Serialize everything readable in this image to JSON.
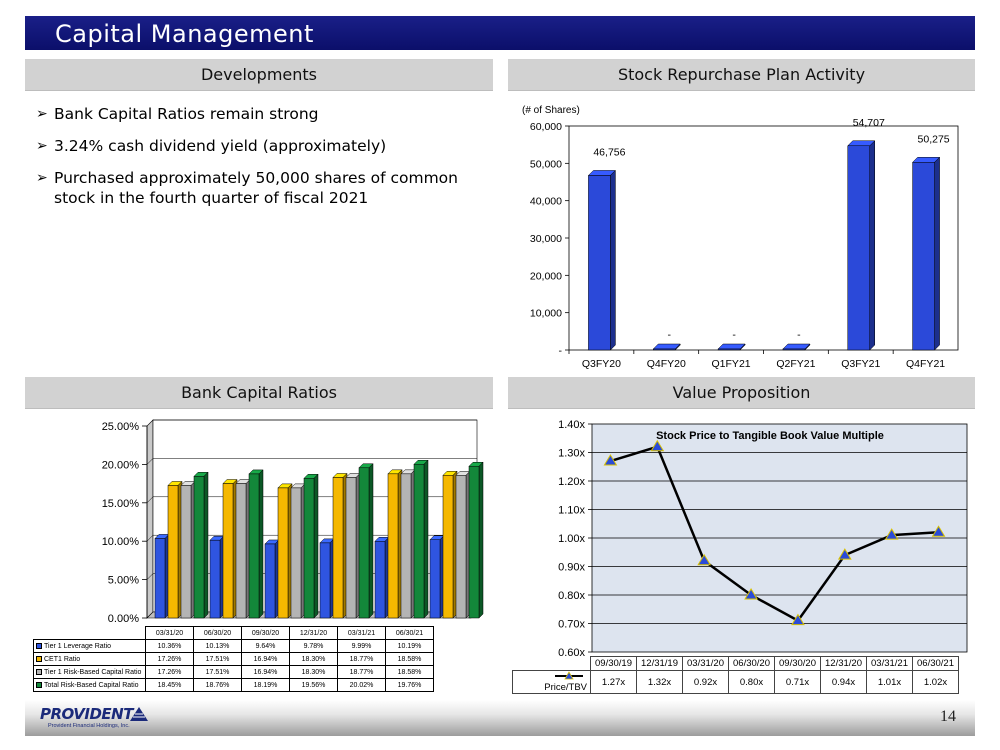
{
  "page": {
    "title": "Capital Management",
    "page_number": "14",
    "logo_text": "PROVIDENT",
    "logo_subtext": "Provident Financial Holdings, Inc."
  },
  "headers": {
    "developments": "Developments",
    "repurchase": "Stock Repurchase Plan Activity",
    "ratios": "Bank Capital Ratios",
    "value": "Value Proposition"
  },
  "developments": {
    "bullets": [
      "Bank Capital Ratios remain strong",
      "3.24% cash dividend yield (approximately)",
      "Purchased approximately 50,000 shares of common stock in the fourth quarter of fiscal 2021"
    ]
  },
  "chart_data": [
    {
      "id": "repurchase",
      "type": "bar",
      "title": "",
      "ylabel": "(# of Shares)",
      "xlabel": "",
      "categories": [
        "Q3FY20",
        "Q4FY20",
        "Q1FY21",
        "Q2FY21",
        "Q3FY21",
        "Q4FY21"
      ],
      "values": [
        46756,
        0,
        0,
        0,
        54707,
        50275
      ],
      "data_labels": [
        "46,756",
        "-",
        "-",
        "-",
        "54,707",
        "50,275"
      ],
      "ylim": [
        0,
        60000
      ],
      "yticks": [
        "-",
        "10,000",
        "20,000",
        "30,000",
        "40,000",
        "50,000",
        "60,000"
      ],
      "grid": false,
      "color": "#2b49d9"
    },
    {
      "id": "ratios",
      "type": "bar",
      "title": "",
      "categories": [
        "03/31/20",
        "06/30/20",
        "09/30/20",
        "12/31/20",
        "03/31/21",
        "06/30/21"
      ],
      "series": [
        {
          "name": "Tier 1 Leverage Ratio",
          "values": [
            10.36,
            10.13,
            9.64,
            9.78,
            9.99,
            10.19
          ],
          "labels": [
            "10.36%",
            "10.13%",
            "9.64%",
            "9.78%",
            "9.99%",
            "10.19%"
          ],
          "color": "#2f55e0"
        },
        {
          "name": "CET1 Ratio",
          "values": [
            17.26,
            17.51,
            16.94,
            18.3,
            18.77,
            18.58
          ],
          "labels": [
            "17.26%",
            "17.51%",
            "16.94%",
            "18.30%",
            "18.77%",
            "18.58%"
          ],
          "color": "#f5b800"
        },
        {
          "name": "Tier 1 Risk-Based Capital Ratio",
          "values": [
            17.26,
            17.51,
            16.94,
            18.3,
            18.77,
            18.58
          ],
          "labels": [
            "17.26%",
            "17.51%",
            "16.94%",
            "18.30%",
            "18.77%",
            "18.58%"
          ],
          "color": "#b4b4b4"
        },
        {
          "name": "Total Risk-Based Capital Ratio",
          "values": [
            18.45,
            18.76,
            18.19,
            19.56,
            20.02,
            19.76
          ],
          "labels": [
            "18.45%",
            "18.76%",
            "18.19%",
            "19.56%",
            "20.02%",
            "19.76%"
          ],
          "color": "#13873a"
        }
      ],
      "ylim": [
        0,
        25
      ],
      "yticks": [
        "0.00%",
        "5.00%",
        "10.00%",
        "15.00%",
        "20.00%",
        "25.00%"
      ],
      "legend": "table-bottom"
    },
    {
      "id": "value",
      "type": "line",
      "title": "Stock Price to Tangible Book Value Multiple",
      "categories": [
        "09/30/19",
        "12/31/19",
        "03/31/20",
        "06/30/20",
        "09/30/20",
        "12/31/20",
        "03/31/21",
        "06/30/21"
      ],
      "series": [
        {
          "name": "Price/TBV",
          "values": [
            1.27,
            1.32,
            0.92,
            0.8,
            0.71,
            0.94,
            1.01,
            1.02
          ],
          "labels": [
            "1.27x",
            "1.32x",
            "0.92x",
            "0.80x",
            "0.71x",
            "0.94x",
            "1.01x",
            "1.02x"
          ],
          "color": "#000000",
          "marker_color": "#2a4bd8"
        }
      ],
      "ylim": [
        0.6,
        1.4
      ],
      "yticks": [
        "0.60x",
        "0.70x",
        "0.80x",
        "0.90x",
        "1.00x",
        "1.10x",
        "1.20x",
        "1.30x",
        "1.40x"
      ],
      "grid": true,
      "legend": "table-bottom"
    }
  ]
}
